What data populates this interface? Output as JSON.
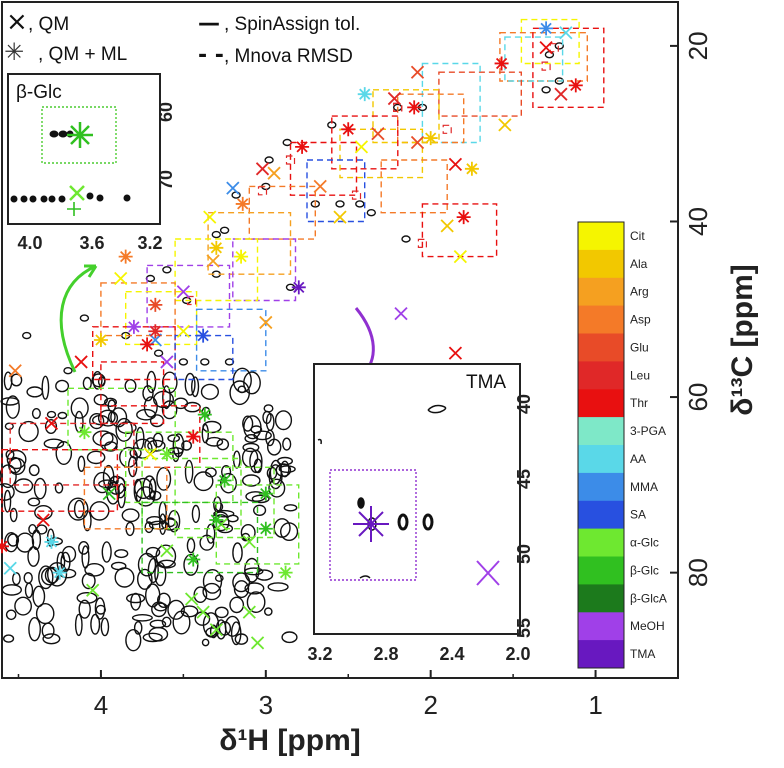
{
  "chart_data": {
    "type": "scatter",
    "title": "",
    "xlabel": "δ¹H [ppm]",
    "ylabel": "δ¹³C [ppm]",
    "xlim": [
      4.6,
      0.5
    ],
    "ylim": [
      92,
      15
    ],
    "x_ticks": [
      "4",
      "3",
      "2",
      "1"
    ],
    "y_ticks": [
      "20",
      "40",
      "60",
      "80"
    ],
    "marker_legend": [
      {
        "symbol": "×",
        "label": ", QM"
      },
      {
        "symbol": "✳",
        "label": ", QM + ML"
      },
      {
        "symbol": "—",
        "label": ", SpinAssign tol."
      },
      {
        "symbol": "- -",
        "label": ", Mnova RMSD"
      }
    ],
    "metabolites": [
      {
        "name": "Cit",
        "color": "#f5f500"
      },
      {
        "name": "Ala",
        "color": "#f2c800"
      },
      {
        "name": "Arg",
        "color": "#f5a020"
      },
      {
        "name": "Asp",
        "color": "#f47a28"
      },
      {
        "name": "Glu",
        "color": "#e84b28"
      },
      {
        "name": "Leu",
        "color": "#e02828"
      },
      {
        "name": "Thr",
        "color": "#e81010"
      },
      {
        "name": "3-PGA",
        "color": "#7ee8c8"
      },
      {
        "name": "AA",
        "color": "#5ad8e8"
      },
      {
        "name": "MMA",
        "color": "#3c8ce8"
      },
      {
        "name": "SA",
        "color": "#2850e0"
      },
      {
        "name": "α-Glc",
        "color": "#6ee830"
      },
      {
        "name": "β-Glc",
        "color": "#30c020"
      },
      {
        "name": "β-GlcA",
        "color": "#1c7a1c"
      },
      {
        "name": "MeOH",
        "color": "#a040e8"
      },
      {
        "name": "TMA",
        "color": "#6818c0"
      }
    ],
    "points_qm": [
      {
        "h": 1.18,
        "c": 18.5,
        "m": "AA"
      },
      {
        "h": 1.3,
        "c": 20.2,
        "m": "Thr"
      },
      {
        "h": 1.21,
        "c": 25.5,
        "m": "Leu"
      },
      {
        "h": 1.55,
        "c": 29.0,
        "m": "Ala"
      },
      {
        "h": 2.08,
        "c": 23.0,
        "m": "Glu"
      },
      {
        "h": 2.22,
        "c": 26.0,
        "m": "Leu"
      },
      {
        "h": 2.32,
        "c": 30.0,
        "m": "Glu"
      },
      {
        "h": 2.42,
        "c": 31.5,
        "m": "Cit"
      },
      {
        "h": 2.67,
        "c": 36.0,
        "m": "Asp"
      },
      {
        "h": 2.95,
        "c": 34.5,
        "m": "Arg"
      },
      {
        "h": 3.02,
        "c": 34.0,
        "m": "Leu"
      },
      {
        "h": 2.55,
        "c": 39.5,
        "m": "Ala"
      },
      {
        "h": 2.08,
        "c": 31.0,
        "m": "Glu"
      },
      {
        "h": 1.85,
        "c": 33.5,
        "m": "Thr"
      },
      {
        "h": 1.9,
        "c": 40.5,
        "m": "Ala"
      },
      {
        "h": 1.82,
        "c": 44.0,
        "m": "Cit"
      },
      {
        "h": 3.2,
        "c": 36.2,
        "m": "MMA"
      },
      {
        "h": 3.34,
        "c": 39.5,
        "m": "Cit"
      },
      {
        "h": 3.32,
        "c": 44.5,
        "m": "Arg"
      },
      {
        "h": 3.88,
        "c": 46.5,
        "m": "Cit"
      },
      {
        "h": 2.18,
        "c": 50.5,
        "m": "MeOH"
      },
      {
        "h": 1.85,
        "c": 55.0,
        "m": "Thr"
      },
      {
        "h": 3.67,
        "c": 53.5,
        "m": "MMA"
      },
      {
        "h": 4.52,
        "c": 57.0,
        "m": "Asp"
      },
      {
        "h": 4.12,
        "c": 56.0,
        "m": "Thr"
      },
      {
        "h": 3.6,
        "c": 56.0,
        "m": "MeOH"
      },
      {
        "h": 3.5,
        "c": 48.0,
        "m": "MeOH"
      },
      {
        "h": 3.5,
        "c": 52.5,
        "m": "Cit"
      },
      {
        "h": 3.0,
        "c": 51.5,
        "m": "Arg"
      },
      {
        "h": 4.3,
        "c": 63.0,
        "m": "Thr"
      },
      {
        "h": 3.7,
        "c": 66.5,
        "m": "Cit"
      },
      {
        "h": 3.95,
        "c": 71.0,
        "m": "β-Glc"
      },
      {
        "h": 4.35,
        "c": 74.0,
        "m": "Thr"
      },
      {
        "h": 3.27,
        "c": 74.5,
        "m": "α-Glc"
      },
      {
        "h": 3.1,
        "c": 76.5,
        "m": "α-Glc"
      },
      {
        "h": 3.6,
        "c": 77.5,
        "m": "α-Glc"
      },
      {
        "h": 4.55,
        "c": 79.5,
        "m": "AA"
      },
      {
        "h": 4.05,
        "c": 82.0,
        "m": "α-Glc"
      },
      {
        "h": 3.45,
        "c": 83.0,
        "m": "α-Glc"
      },
      {
        "h": 3.1,
        "c": 84.5,
        "m": "α-Glc"
      },
      {
        "h": 3.38,
        "c": 84.5,
        "m": "α-Glc"
      },
      {
        "h": 3.3,
        "c": 86.5,
        "m": "α-Glc"
      },
      {
        "h": 3.05,
        "c": 88.0,
        "m": "α-Glc"
      }
    ],
    "points_qmml": [
      {
        "h": 1.3,
        "c": 18.0,
        "m": "MMA"
      },
      {
        "h": 1.57,
        "c": 22.0,
        "m": "Thr"
      },
      {
        "h": 1.12,
        "c": 24.5,
        "m": "Thr"
      },
      {
        "h": 2.1,
        "c": 27.0,
        "m": "Thr"
      },
      {
        "h": 2.5,
        "c": 29.5,
        "m": "Thr"
      },
      {
        "h": 2.78,
        "c": 31.5,
        "m": "Thr"
      },
      {
        "h": 2.4,
        "c": 25.5,
        "m": "AA"
      },
      {
        "h": 2.0,
        "c": 30.5,
        "m": "Ala"
      },
      {
        "h": 1.75,
        "c": 34.0,
        "m": "Ala"
      },
      {
        "h": 3.14,
        "c": 38.0,
        "m": "Asp"
      },
      {
        "h": 1.8,
        "c": 39.5,
        "m": "Thr"
      },
      {
        "h": 3.3,
        "c": 43.0,
        "m": "Ala"
      },
      {
        "h": 3.15,
        "c": 44.0,
        "m": "Cit"
      },
      {
        "h": 2.8,
        "c": 47.5,
        "m": "TMA"
      },
      {
        "h": 3.85,
        "c": 44.0,
        "m": "Asp"
      },
      {
        "h": 3.67,
        "c": 49.5,
        "m": "Glu"
      },
      {
        "h": 3.67,
        "c": 52.5,
        "m": "Leu"
      },
      {
        "h": 3.72,
        "c": 54.0,
        "m": "Thr"
      },
      {
        "h": 4.0,
        "c": 53.5,
        "m": "Ala"
      },
      {
        "h": 3.8,
        "c": 52.0,
        "m": "MeOH"
      },
      {
        "h": 3.38,
        "c": 53.0,
        "m": "SA"
      },
      {
        "h": 3.37,
        "c": 62.0,
        "m": "β-Glc"
      },
      {
        "h": 3.44,
        "c": 64.5,
        "m": "Thr"
      },
      {
        "h": 3.6,
        "c": 66.5,
        "m": "α-Glc"
      },
      {
        "h": 4.1,
        "c": 64.0,
        "m": "α-Glc"
      },
      {
        "h": 3.25,
        "c": 69.5,
        "m": "β-Glc"
      },
      {
        "h": 3.0,
        "c": 71.0,
        "m": "β-Glc"
      },
      {
        "h": 3.3,
        "c": 74.0,
        "m": "β-Glc"
      },
      {
        "h": 3.0,
        "c": 75.0,
        "m": "β-Glc"
      },
      {
        "h": 2.88,
        "c": 80.0,
        "m": "α-Glc"
      },
      {
        "h": 3.44,
        "c": 78.5,
        "m": "β-Glc"
      },
      {
        "h": 4.6,
        "c": 77.0,
        "m": "Thr"
      },
      {
        "h": 4.25,
        "c": 80.0,
        "m": "AA"
      },
      {
        "h": 4.3,
        "c": 76.5,
        "m": "AA"
      }
    ],
    "insets": [
      {
        "title": "β-Glc",
        "x_ticks": [
          "4.0",
          "3.6",
          "3.2"
        ],
        "y_ticks": [
          "60",
          "70"
        ]
      },
      {
        "title": "TMA",
        "x_ticks": [
          "3.2",
          "2.8",
          "2.4",
          "2.0"
        ],
        "y_ticks": [
          "40",
          "45",
          "50",
          "55"
        ]
      }
    ]
  }
}
